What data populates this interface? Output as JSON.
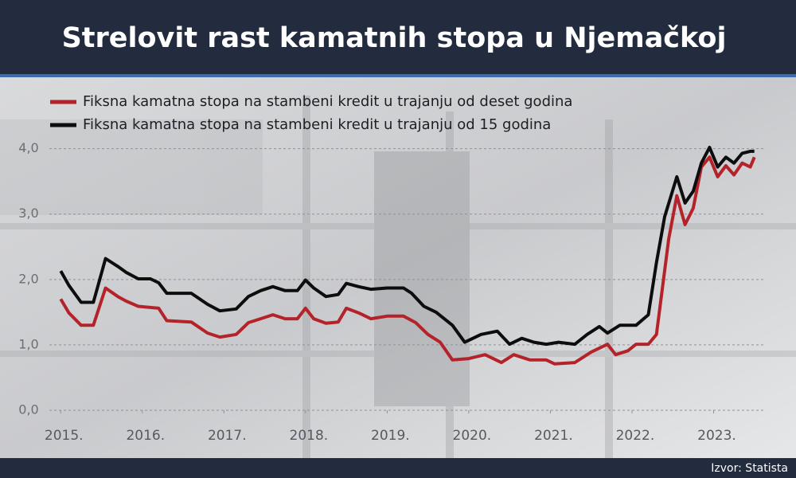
{
  "chart_data": {
    "type": "line",
    "title": "Strelovit rast kamatnih stopa u Njemačkoj",
    "source": "Izvor: Statista",
    "series": [
      {
        "name": "Fiksna kamatna stopa na stambeni kredit u trajanju od deset godina",
        "color": "#b5232a",
        "x": [
          2015.0,
          2015.1,
          2015.25,
          2015.4,
          2015.55,
          2015.7,
          2015.8,
          2015.95,
          2016.2,
          2016.3,
          2016.6,
          2016.8,
          2016.95,
          2017.15,
          2017.3,
          2017.45,
          2017.6,
          2017.75,
          2017.9,
          2018.0,
          2018.1,
          2018.25,
          2018.4,
          2018.5,
          2018.65,
          2018.8,
          2019.0,
          2019.2,
          2019.35,
          2019.5,
          2019.65,
          2019.8,
          2020.0,
          2020.2,
          2020.4,
          2020.55,
          2020.75,
          2020.95,
          2021.05,
          2021.3,
          2021.5,
          2021.7,
          2021.8,
          2021.95,
          2022.05,
          2022.2,
          2022.3,
          2022.45,
          2022.55,
          2022.65,
          2022.75,
          2022.85,
          2022.95,
          2023.05,
          2023.15,
          2023.25,
          2023.35,
          2023.45,
          2023.5
        ],
        "values": [
          1.7,
          1.49,
          1.3,
          1.3,
          1.87,
          1.74,
          1.67,
          1.59,
          1.56,
          1.37,
          1.35,
          1.18,
          1.12,
          1.16,
          1.34,
          1.4,
          1.46,
          1.4,
          1.4,
          1.56,
          1.4,
          1.33,
          1.35,
          1.56,
          1.49,
          1.4,
          1.44,
          1.44,
          1.34,
          1.16,
          1.04,
          0.77,
          0.79,
          0.85,
          0.73,
          0.85,
          0.77,
          0.77,
          0.71,
          0.73,
          0.89,
          1.01,
          0.85,
          0.91,
          1.01,
          1.01,
          1.16,
          2.62,
          3.28,
          2.84,
          3.09,
          3.72,
          3.87,
          3.57,
          3.74,
          3.6,
          3.78,
          3.72,
          3.87
        ]
      },
      {
        "name": "Fiksna kamatna stopa na stambeni kredit u trajanju od 15 godina",
        "color": "#0d0d0d",
        "x": [
          2015.0,
          2015.1,
          2015.25,
          2015.4,
          2015.55,
          2015.7,
          2015.8,
          2015.95,
          2016.1,
          2016.2,
          2016.3,
          2016.6,
          2016.8,
          2016.95,
          2017.15,
          2017.3,
          2017.45,
          2017.6,
          2017.75,
          2017.9,
          2018.0,
          2018.1,
          2018.25,
          2018.4,
          2018.5,
          2018.65,
          2018.8,
          2019.0,
          2019.2,
          2019.3,
          2019.45,
          2019.6,
          2019.8,
          2019.95,
          2020.15,
          2020.35,
          2020.5,
          2020.65,
          2020.8,
          2020.95,
          2021.1,
          2021.3,
          2021.45,
          2021.6,
          2021.7,
          2021.85,
          2022.05,
          2022.2,
          2022.3,
          2022.4,
          2022.55,
          2022.65,
          2022.75,
          2022.85,
          2022.95,
          2023.05,
          2023.15,
          2023.25,
          2023.35,
          2023.45,
          2023.5
        ],
        "values": [
          2.13,
          1.91,
          1.65,
          1.65,
          2.32,
          2.2,
          2.11,
          2.01,
          2.01,
          1.95,
          1.79,
          1.79,
          1.62,
          1.52,
          1.55,
          1.74,
          1.83,
          1.89,
          1.83,
          1.83,
          1.99,
          1.87,
          1.74,
          1.77,
          1.94,
          1.89,
          1.85,
          1.87,
          1.87,
          1.79,
          1.59,
          1.5,
          1.3,
          1.04,
          1.16,
          1.21,
          1.01,
          1.1,
          1.04,
          1.01,
          1.04,
          1.01,
          1.16,
          1.28,
          1.18,
          1.3,
          1.3,
          1.46,
          2.26,
          2.96,
          3.57,
          3.17,
          3.35,
          3.78,
          4.02,
          3.72,
          3.87,
          3.78,
          3.93,
          3.96,
          3.96
        ]
      }
    ],
    "xlim": [
      2014.9,
      2023.6
    ],
    "xticks": [
      {
        "value": 2015,
        "label": "2015."
      },
      {
        "value": 2016,
        "label": "2016."
      },
      {
        "value": 2017,
        "label": "2017."
      },
      {
        "value": 2018,
        "label": "2018."
      },
      {
        "value": 2019,
        "label": "2019."
      },
      {
        "value": 2020,
        "label": "2020."
      },
      {
        "value": 2021,
        "label": "2021."
      },
      {
        "value": 2022,
        "label": "2022."
      },
      {
        "value": 2023,
        "label": "2023."
      }
    ],
    "ylim": [
      0,
      4.3
    ],
    "yticks": [
      {
        "value": 0,
        "label": "0,0"
      },
      {
        "value": 1,
        "label": "1,0"
      },
      {
        "value": 2,
        "label": "2,0"
      },
      {
        "value": 3,
        "label": "3,0"
      },
      {
        "value": 4,
        "label": "4,0"
      }
    ],
    "grid": true
  }
}
